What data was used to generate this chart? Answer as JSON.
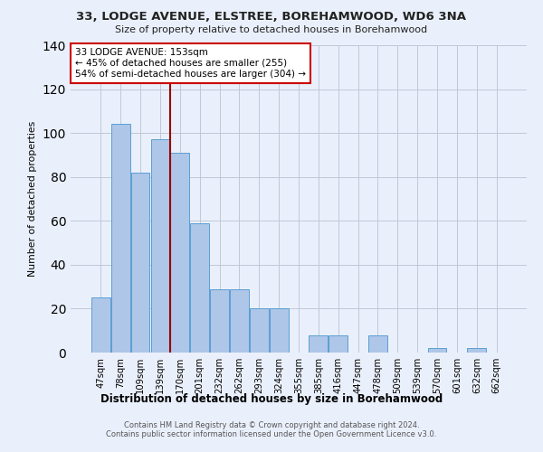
{
  "title": "33, LODGE AVENUE, ELSTREE, BOREHAMWOOD, WD6 3NA",
  "subtitle": "Size of property relative to detached houses in Borehamwood",
  "xlabel": "Distribution of detached houses by size in Borehamwood",
  "ylabel": "Number of detached properties",
  "categories": [
    "47sqm",
    "78sqm",
    "109sqm",
    "139sqm",
    "170sqm",
    "201sqm",
    "232sqm",
    "262sqm",
    "293sqm",
    "324sqm",
    "355sqm",
    "385sqm",
    "416sqm",
    "447sqm",
    "478sqm",
    "509sqm",
    "539sqm",
    "570sqm",
    "601sqm",
    "632sqm",
    "662sqm"
  ],
  "values": [
    25,
    104,
    82,
    97,
    91,
    59,
    29,
    29,
    20,
    20,
    0,
    8,
    8,
    0,
    8,
    0,
    0,
    2,
    0,
    2,
    0
  ],
  "bar_color": "#aec6e8",
  "bar_edge_color": "#5a9fd4",
  "property_line_x": 3.5,
  "property_label": "33 LODGE AVENUE: 153sqm",
  "annotation_line1": "← 45% of detached houses are smaller (255)",
  "annotation_line2": "54% of semi-detached houses are larger (304) →",
  "annotation_box_color": "#ffffff",
  "annotation_box_edge": "#cc0000",
  "vline_color": "#990000",
  "background_color": "#eaf0fb",
  "footer": "Contains HM Land Registry data © Crown copyright and database right 2024.\nContains public sector information licensed under the Open Government Licence v3.0.",
  "ylim": [
    0,
    140
  ],
  "yticks": [
    0,
    20,
    40,
    60,
    80,
    100,
    120,
    140
  ]
}
